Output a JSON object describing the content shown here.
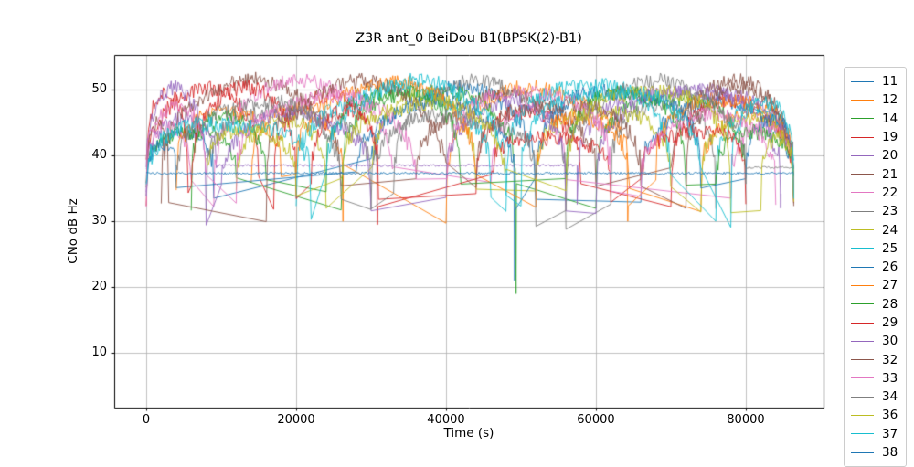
{
  "chart_data": {
    "type": "line",
    "title": "Z3R ant_0 BeiDou B1(BPSK(2)-B1)",
    "xlabel": "Time (s)",
    "ylabel": "CNo dB Hz",
    "xlim": [
      -4270,
      90370
    ],
    "ylim": [
      1.7,
      55.3
    ],
    "xticks": [
      0,
      20000,
      40000,
      60000,
      80000
    ],
    "xtick_labels": [
      "0",
      "20000",
      "40000",
      "60000",
      "80000"
    ],
    "yticks": [
      10,
      20,
      30,
      40,
      50
    ],
    "ytick_labels": [
      "10",
      "20",
      "30",
      "40",
      "50"
    ],
    "grid": true,
    "grid_color": "#b0b0b0",
    "spine_color": "#000000",
    "legend_position": "outside-right",
    "legend_partially_clipped_last_entry": "38",
    "sample_interval_s": 150,
    "noise_amplitude_db": 1.2,
    "arc_edge_level_dbhz": 36.5,
    "units_note": "arcs = [t_start_s, t_end_s, peak_CNo_dBHz]; flats = [t_start_s, t_end_s, level_dBHz]; spikes = [t_s, CNo_dBHz]",
    "series": [
      {
        "name": "11",
        "color": "#1f77b4",
        "arcs": [
          [
            0,
            9000,
            44
          ],
          [
            30000,
            52000,
            50
          ],
          [
            66000,
            86400,
            48
          ]
        ],
        "flats": [],
        "spikes": []
      },
      {
        "name": "12",
        "color": "#ff7f0e",
        "arcs": [
          [
            14000,
            26300,
            47
          ],
          [
            40000,
            64500,
            50
          ],
          [
            74000,
            86400,
            46
          ]
        ],
        "flats": [],
        "spikes": [
          [
            26250,
            30
          ]
        ]
      },
      {
        "name": "14",
        "color": "#2ca02c",
        "arcs": [
          [
            0,
            12000,
            44
          ],
          [
            26000,
            49400,
            50
          ],
          [
            60000,
            80000,
            49
          ]
        ],
        "flats": [],
        "spikes": [
          [
            49350,
            19
          ]
        ]
      },
      {
        "name": "19",
        "color": "#d62728",
        "arcs": [
          [
            0,
            15000,
            50
          ],
          [
            17000,
            31000,
            49
          ],
          [
            44000,
            58000,
            47
          ],
          [
            70000,
            86400,
            48
          ]
        ],
        "flats": [],
        "spikes": []
      },
      {
        "name": "20",
        "color": "#9467bd",
        "arcs": [
          [
            0,
            9500,
            46
          ],
          [
            57500,
            84700,
            50
          ]
        ],
        "flats": [
          [
            9500,
            57500,
            38.5
          ]
        ],
        "spikes": [
          [
            84650,
            32
          ]
        ]
      },
      {
        "name": "21",
        "color": "#8c564b",
        "arcs": [
          [
            2000,
            26000,
            51
          ],
          [
            36000,
            60000,
            49
          ],
          [
            70000,
            86400,
            51
          ]
        ],
        "flats": [],
        "spikes": []
      },
      {
        "name": "22",
        "color": "#e377c2",
        "arcs": [
          [
            0,
            6000,
            44
          ],
          [
            9000,
            33000,
            51
          ],
          [
            46000,
            56000,
            47
          ],
          [
            78000,
            86400,
            44
          ]
        ],
        "flats": [],
        "spikes": []
      },
      {
        "name": "23",
        "color": "#7f7f7f",
        "arcs": [
          [
            8000,
            30000,
            47
          ],
          [
            33000,
            56000,
            51
          ],
          [
            62000,
            76000,
            48
          ]
        ],
        "flats": [],
        "spikes": []
      },
      {
        "name": "24",
        "color": "#bcbd22",
        "arcs": [
          [
            12000,
            24000,
            45
          ],
          [
            30000,
            44000,
            49
          ],
          [
            52000,
            70000,
            47
          ],
          [
            74000,
            86400,
            46
          ]
        ],
        "flats": [],
        "spikes": []
      },
      {
        "name": "25",
        "color": "#17becf",
        "arcs": [
          [
            20000,
            46000,
            50
          ],
          [
            48000,
            70000,
            51
          ],
          [
            76000,
            86400,
            47
          ]
        ],
        "flats": [],
        "spikes": []
      },
      {
        "name": "26",
        "color": "#1f77b4",
        "arcs": [
          [
            0,
            4000,
            42
          ],
          [
            28000,
            49200,
            48
          ],
          [
            52000,
            74000,
            50
          ],
          [
            80000,
            86400,
            46
          ]
        ],
        "flats": [],
        "spikes": [
          [
            49150,
            21
          ]
        ]
      },
      {
        "name": "27",
        "color": "#ff7f0e",
        "arcs": [
          [
            4000,
            18000,
            47
          ],
          [
            20000,
            44000,
            51
          ],
          [
            52000,
            64300,
            46
          ],
          [
            68000,
            86400,
            49
          ]
        ],
        "flats": [],
        "spikes": [
          [
            64250,
            30
          ]
        ]
      },
      {
        "name": "28",
        "color": "#2ca02c",
        "arcs": [
          [
            6000,
            16000,
            46
          ],
          [
            24000,
            42000,
            50
          ],
          [
            56000,
            72000,
            50
          ],
          [
            76000,
            86400,
            44
          ]
        ],
        "flats": [],
        "spikes": []
      },
      {
        "name": "29",
        "color": "#d62728",
        "arcs": [
          [
            0,
            5600,
            50
          ],
          [
            6000,
            20000,
            50
          ],
          [
            22000,
            30900,
            47
          ],
          [
            46000,
            62000,
            43
          ],
          [
            66000,
            80000,
            44
          ]
        ],
        "flats": [],
        "spikes": [
          [
            30850,
            29.5
          ]
        ]
      },
      {
        "name": "30",
        "color": "#9467bd",
        "arcs": [
          [
            0,
            8000,
            50
          ],
          [
            10000,
            30000,
            46
          ],
          [
            40000,
            56000,
            48
          ],
          [
            60000,
            86400,
            50
          ]
        ],
        "flats": [],
        "spikes": []
      },
      {
        "name": "32",
        "color": "#8c564b",
        "arcs": [
          [
            0,
            3000,
            45
          ],
          [
            16000,
            40000,
            51
          ],
          [
            44000,
            66000,
            48
          ],
          [
            72000,
            86400,
            50
          ]
        ],
        "flats": [],
        "spikes": []
      },
      {
        "name": "33",
        "color": "#e377c2",
        "arcs": [
          [
            0,
            8000,
            48
          ],
          [
            12000,
            36000,
            49
          ],
          [
            40000,
            62000,
            50
          ],
          [
            66000,
            84000,
            46
          ]
        ],
        "flats": [],
        "spikes": []
      },
      {
        "name": "34",
        "color": "#7f7f7f",
        "arcs": [
          [
            4000,
            26000,
            48
          ],
          [
            30000,
            52000,
            46
          ],
          [
            56000,
            80000,
            51
          ]
        ],
        "flats": [
          [
            80000,
            86400,
            38.2
          ]
        ],
        "spikes": []
      },
      {
        "name": "36",
        "color": "#bcbd22",
        "arcs": [
          [
            8000,
            20000,
            44
          ],
          [
            26000,
            48000,
            48
          ],
          [
            56000,
            78000,
            50
          ],
          [
            82000,
            86400,
            43
          ]
        ],
        "flats": [],
        "spikes": []
      },
      {
        "name": "37",
        "color": "#17becf",
        "arcs": [
          [
            0,
            22000,
            45
          ],
          [
            24000,
            48000,
            51
          ],
          [
            50000,
            74000,
            50
          ],
          [
            78000,
            86400,
            48
          ]
        ],
        "flats": [],
        "spikes": []
      },
      {
        "name": "38",
        "color": "#1f77b4",
        "arcs": [],
        "flats": [
          [
            0,
            86400,
            37.3
          ]
        ],
        "spikes": []
      }
    ]
  }
}
